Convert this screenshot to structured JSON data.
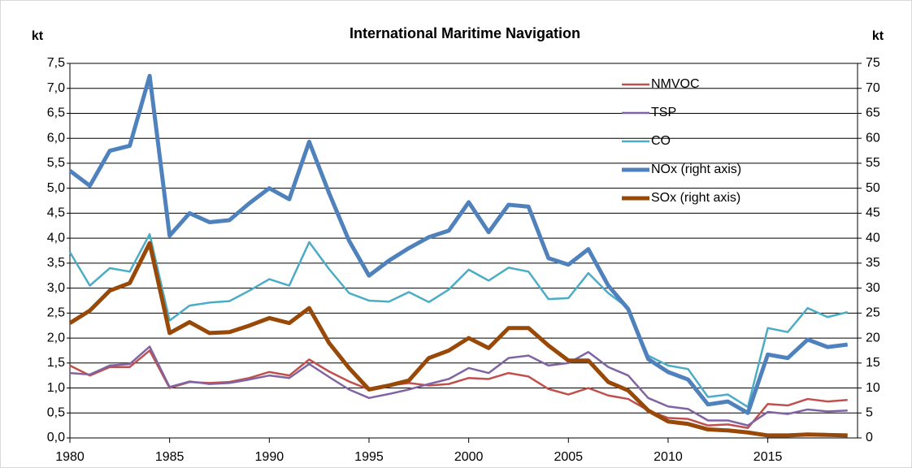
{
  "chart_data": {
    "type": "line",
    "title": "International Maritime Navigation",
    "ylabel": "kt",
    "y2label": "kt",
    "x": [
      1980,
      1981,
      1982,
      1983,
      1984,
      1985,
      1986,
      1987,
      1988,
      1989,
      1990,
      1991,
      1992,
      1993,
      1994,
      1995,
      1996,
      1997,
      1998,
      1999,
      2000,
      2001,
      2002,
      2003,
      2004,
      2005,
      2006,
      2007,
      2008,
      2009,
      2010,
      2011,
      2012,
      2013,
      2014,
      2015,
      2016,
      2017,
      2018,
      2019
    ],
    "xlim": [
      1980,
      2019.5
    ],
    "xticks": [
      1980,
      1985,
      1990,
      1995,
      2000,
      2005,
      2010,
      2015
    ],
    "ylim": [
      0,
      7.5
    ],
    "yticks": [
      {
        "value": 0,
        "label": "0,0"
      },
      {
        "value": 0.5,
        "label": "0,5"
      },
      {
        "value": 1,
        "label": "1,0"
      },
      {
        "value": 1.5,
        "label": "1,5"
      },
      {
        "value": 2,
        "label": "2,0"
      },
      {
        "value": 2.5,
        "label": "2,5"
      },
      {
        "value": 3,
        "label": "3,0"
      },
      {
        "value": 3.5,
        "label": "3,5"
      },
      {
        "value": 4,
        "label": "4,0"
      },
      {
        "value": 4.5,
        "label": "4,5"
      },
      {
        "value": 5,
        "label": "5,0"
      },
      {
        "value": 5.5,
        "label": "5,5"
      },
      {
        "value": 6,
        "label": "6,0"
      },
      {
        "value": 6.5,
        "label": "6,5"
      },
      {
        "value": 7,
        "label": "7,0"
      },
      {
        "value": 7.5,
        "label": "7,5"
      }
    ],
    "y2lim": [
      0,
      75
    ],
    "y2ticks": [
      0,
      5,
      10,
      15,
      20,
      25,
      30,
      35,
      40,
      45,
      50,
      55,
      60,
      65,
      70,
      75
    ],
    "grid": true,
    "legend": "upper right",
    "series": [
      {
        "name": "NMVOC",
        "color": "#c0504d",
        "values": [
          1.45,
          1.25,
          1.42,
          1.42,
          1.75,
          1.0,
          1.12,
          1.1,
          1.12,
          1.2,
          1.32,
          1.25,
          1.57,
          1.33,
          1.13,
          0.97,
          1.05,
          1.1,
          1.05,
          1.08,
          1.2,
          1.18,
          1.3,
          1.23,
          0.98,
          0.87,
          1.0,
          0.85,
          0.78,
          0.55,
          0.4,
          0.38,
          0.25,
          0.27,
          0.2,
          0.68,
          0.65,
          0.78,
          0.73,
          0.76
        ]
      },
      {
        "name": "TSP",
        "color": "#8064a2",
        "values": [
          1.3,
          1.27,
          1.45,
          1.48,
          1.83,
          1.02,
          1.13,
          1.08,
          1.1,
          1.17,
          1.25,
          1.2,
          1.48,
          1.22,
          0.97,
          0.8,
          0.88,
          0.97,
          1.08,
          1.18,
          1.4,
          1.3,
          1.6,
          1.65,
          1.45,
          1.5,
          1.72,
          1.42,
          1.25,
          0.8,
          0.63,
          0.58,
          0.35,
          0.35,
          0.25,
          0.52,
          0.48,
          0.57,
          0.53,
          0.55
        ]
      },
      {
        "name": "CO",
        "color": "#4bacc6",
        "values": [
          3.72,
          3.05,
          3.4,
          3.33,
          4.08,
          2.35,
          2.65,
          2.71,
          2.74,
          2.95,
          3.18,
          3.05,
          3.92,
          3.38,
          2.9,
          2.75,
          2.73,
          2.92,
          2.72,
          2.97,
          3.37,
          3.15,
          3.41,
          3.33,
          2.78,
          2.8,
          3.3,
          2.9,
          2.6,
          1.65,
          1.45,
          1.38,
          0.82,
          0.87,
          0.62,
          2.2,
          2.12,
          2.6,
          2.42,
          2.52
        ]
      },
      {
        "name": "NOx (right axis)",
        "color": "#4f81bd",
        "axis": "y2",
        "values": [
          53.5,
          50.5,
          57.5,
          58.5,
          72.5,
          40.5,
          45,
          43.2,
          43.6,
          47,
          50,
          47.8,
          59.3,
          49,
          39.5,
          32.5,
          35.5,
          38,
          40.2,
          41.5,
          47.2,
          41.2,
          46.7,
          46.3,
          36,
          34.7,
          37.8,
          30.5,
          25.8,
          15.8,
          13.2,
          11.7,
          6.7,
          7.3,
          5,
          16.7,
          16,
          19.7,
          18.2,
          18.7
        ]
      },
      {
        "name": "SOx (right axis)",
        "color": "#984807",
        "axis": "y2",
        "values": [
          23,
          25.5,
          29.5,
          31,
          39,
          21,
          23.2,
          21,
          21.2,
          22.5,
          24,
          23,
          26,
          19,
          14,
          9.7,
          10.5,
          11.5,
          16,
          17.5,
          20,
          18,
          22,
          22,
          18.5,
          15.5,
          15.5,
          11.2,
          9.5,
          5.5,
          3.3,
          2.8,
          1.7,
          1.5,
          1.1,
          0.5,
          0.5,
          0.7,
          0.6,
          0.5
        ]
      }
    ]
  }
}
